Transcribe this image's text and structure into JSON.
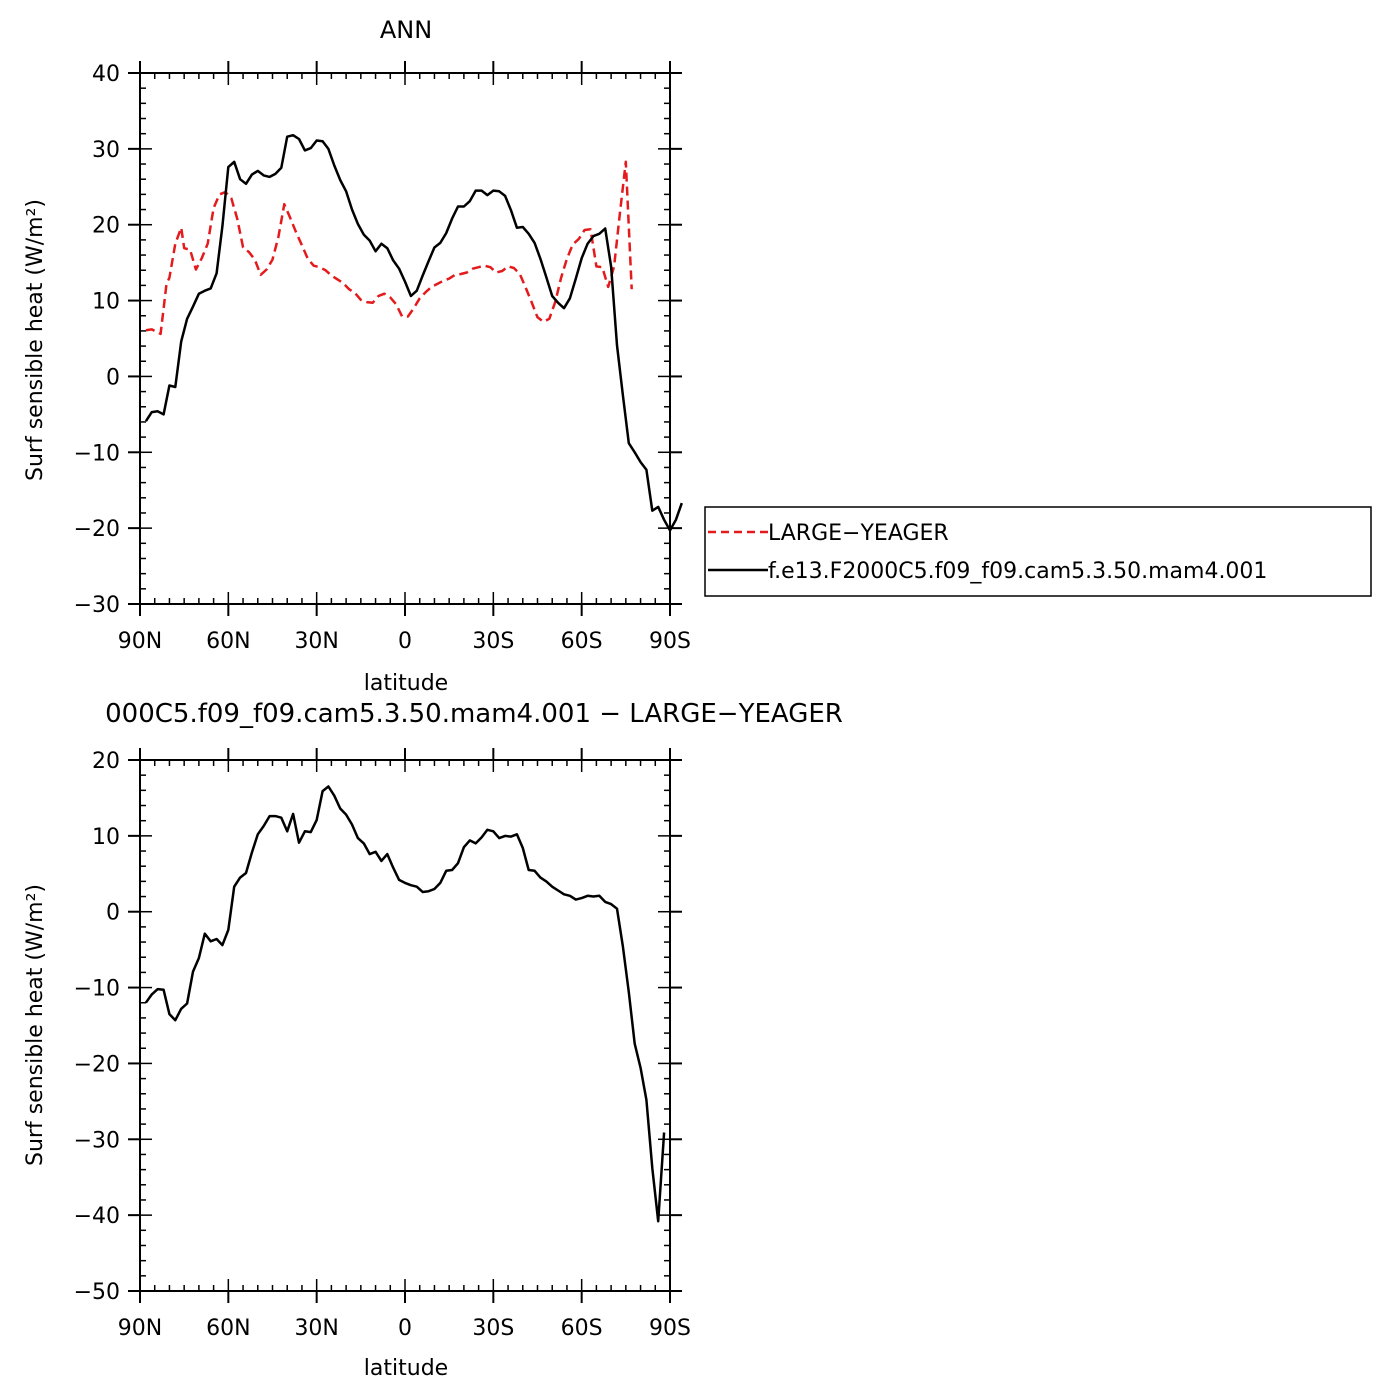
{
  "chart_data": [
    {
      "type": "line",
      "title": "ANN",
      "xlabel": "latitude",
      "ylabel": "Surf sensible heat (W/m²)",
      "xlim": [
        90,
        -90
      ],
      "ylim": [
        -30,
        40
      ],
      "x_ticks": [
        90,
        60,
        30,
        0,
        -30,
        -60,
        -90
      ],
      "x_tick_labels": [
        "90N",
        "60N",
        "30N",
        "0",
        "30S",
        "60S",
        "90S"
      ],
      "y_ticks": [
        -30,
        -20,
        -10,
        0,
        10,
        20,
        30,
        40
      ],
      "y_tick_labels": [
        "−30",
        "−20",
        "−10",
        "0",
        "10",
        "20",
        "30",
        "40"
      ],
      "legend_position": "right",
      "series": [
        {
          "name": "LARGE−YEAGER",
          "color": "#e41a1c",
          "dash": "dashed",
          "points": [
            [
              88,
              6.1
            ],
            [
              86,
              6.2
            ],
            [
              83,
              5.6
            ],
            [
              81,
              12.2
            ],
            [
              80,
              13.0
            ],
            [
              78,
              17.5
            ],
            [
              76,
              19.6
            ],
            [
              75,
              16.9
            ],
            [
              73,
              16.7
            ],
            [
              71,
              14.1
            ],
            [
              69,
              15.6
            ],
            [
              67,
              17.5
            ],
            [
              65,
              22.2
            ],
            [
              63,
              24.0
            ],
            [
              61,
              24.3
            ],
            [
              59,
              23.5
            ],
            [
              57,
              20.8
            ],
            [
              55,
              17.0
            ],
            [
              53,
              16.4
            ],
            [
              51,
              15.4
            ],
            [
              49,
              13.4
            ],
            [
              47,
              14.1
            ],
            [
              45,
              15.4
            ],
            [
              43,
              18.4
            ],
            [
              41,
              22.7
            ],
            [
              39,
              20.9
            ],
            [
              37,
              19.0
            ],
            [
              35,
              17.3
            ],
            [
              33,
              15.5
            ],
            [
              31,
              14.6
            ],
            [
              29,
              14.4
            ],
            [
              27,
              14.0
            ],
            [
              25,
              13.3
            ],
            [
              23,
              12.8
            ],
            [
              21,
              12.3
            ],
            [
              19,
              11.5
            ],
            [
              17,
              11.0
            ],
            [
              15,
              10.1
            ],
            [
              13,
              9.8
            ],
            [
              11,
              9.7
            ],
            [
              9,
              10.6
            ],
            [
              7,
              10.9
            ],
            [
              5,
              10.4
            ],
            [
              3,
              9.5
            ],
            [
              1,
              7.9
            ],
            [
              -1,
              7.9
            ],
            [
              -3,
              9.0
            ],
            [
              -5,
              10.3
            ],
            [
              -7,
              11.1
            ],
            [
              -9,
              11.8
            ],
            [
              -11,
              12.2
            ],
            [
              -13,
              12.6
            ],
            [
              -15,
              12.9
            ],
            [
              -17,
              13.4
            ],
            [
              -19,
              13.5
            ],
            [
              -21,
              13.7
            ],
            [
              -23,
              14.2
            ],
            [
              -25,
              14.4
            ],
            [
              -27,
              14.6
            ],
            [
              -29,
              14.4
            ],
            [
              -31,
              13.7
            ],
            [
              -33,
              13.9
            ],
            [
              -35,
              14.5
            ],
            [
              -37,
              14.3
            ],
            [
              -39,
              13.5
            ],
            [
              -41,
              11.7
            ],
            [
              -43,
              9.8
            ],
            [
              -45,
              7.8
            ],
            [
              -47,
              7.2
            ],
            [
              -49,
              7.6
            ],
            [
              -51,
              9.8
            ],
            [
              -53,
              13.0
            ],
            [
              -55,
              15.5
            ],
            [
              -57,
              17.4
            ],
            [
              -59,
              18.1
            ],
            [
              -61,
              19.3
            ],
            [
              -63,
              19.4
            ],
            [
              -65,
              14.5
            ],
            [
              -67,
              14.4
            ],
            [
              -69,
              11.8
            ],
            [
              -71,
              14.5
            ],
            [
              -73,
              21.5
            ],
            [
              -75,
              28.3
            ],
            [
              -77,
              11.5
            ]
          ]
        },
        {
          "name": "f.e13.F2000C5.f09_f09.cam5.3.50.mam4.001",
          "color": "#000000",
          "dash": "solid",
          "points": [
            [
              88,
              -5.9
            ],
            [
              86,
              -4.7
            ],
            [
              84,
              -4.6
            ],
            [
              82,
              -5.0
            ],
            [
              80,
              -1.2
            ],
            [
              78,
              -1.4
            ],
            [
              76,
              4.6
            ],
            [
              74,
              7.6
            ],
            [
              72,
              9.2
            ],
            [
              70,
              10.9
            ],
            [
              68,
              11.3
            ],
            [
              66,
              11.6
            ],
            [
              64,
              13.6
            ],
            [
              62,
              19.8
            ],
            [
              60,
              27.6
            ],
            [
              58,
              28.3
            ],
            [
              56,
              26.0
            ],
            [
              54,
              25.4
            ],
            [
              52,
              26.6
            ],
            [
              50,
              27.1
            ],
            [
              48,
              26.5
            ],
            [
              46,
              26.3
            ],
            [
              44,
              26.7
            ],
            [
              42,
              27.5
            ],
            [
              40,
              31.6
            ],
            [
              38,
              31.8
            ],
            [
              36,
              31.3
            ],
            [
              34,
              29.8
            ],
            [
              32,
              30.1
            ],
            [
              30,
              31.1
            ],
            [
              28,
              31.0
            ],
            [
              26,
              30.0
            ],
            [
              24,
              27.8
            ],
            [
              22,
              25.9
            ],
            [
              20,
              24.4
            ],
            [
              18,
              22.0
            ],
            [
              16,
              20.1
            ],
            [
              14,
              18.7
            ],
            [
              12,
              17.9
            ],
            [
              10,
              16.5
            ],
            [
              8,
              17.5
            ],
            [
              6,
              16.9
            ],
            [
              4,
              15.3
            ],
            [
              2,
              14.2
            ],
            [
              0,
              12.5
            ],
            [
              -2,
              10.6
            ],
            [
              -4,
              11.3
            ],
            [
              -6,
              13.3
            ],
            [
              -8,
              15.2
            ],
            [
              -10,
              17.0
            ],
            [
              -12,
              17.6
            ],
            [
              -14,
              18.9
            ],
            [
              -16,
              20.8
            ],
            [
              -18,
              22.4
            ],
            [
              -20,
              22.4
            ],
            [
              -22,
              23.1
            ],
            [
              -24,
              24.5
            ],
            [
              -26,
              24.5
            ],
            [
              -28,
              23.9
            ],
            [
              -30,
              24.5
            ],
            [
              -32,
              24.4
            ],
            [
              -34,
              23.8
            ],
            [
              -36,
              21.9
            ],
            [
              -38,
              19.6
            ],
            [
              -40,
              19.7
            ],
            [
              -42,
              18.8
            ],
            [
              -44,
              17.6
            ],
            [
              -46,
              15.5
            ],
            [
              -48,
              13.1
            ],
            [
              -50,
              10.6
            ],
            [
              -52,
              9.7
            ],
            [
              -54,
              9.0
            ],
            [
              -56,
              10.3
            ],
            [
              -58,
              12.9
            ],
            [
              -60,
              15.6
            ],
            [
              -62,
              17.5
            ],
            [
              -64,
              18.5
            ],
            [
              -66,
              18.8
            ],
            [
              -68,
              19.5
            ],
            [
              -70,
              14.5
            ],
            [
              -72,
              4.1
            ],
            [
              -74,
              -2.5
            ],
            [
              -76,
              -8.8
            ],
            [
              -78,
              -10.0
            ],
            [
              -80,
              -11.3
            ],
            [
              -82,
              -12.3
            ],
            [
              -84,
              -17.7
            ],
            [
              -86,
              -17.2
            ],
            [
              -88,
              -18.9
            ],
            [
              -90,
              -20.3
            ],
            [
              -92,
              -18.9
            ],
            [
              -94,
              -16.7
            ]
          ]
        }
      ]
    },
    {
      "type": "line",
      "title": "000C5.f09_f09.cam5.3.50.mam4.001 − LARGE−YEAGER",
      "xlabel": "latitude",
      "ylabel": "Surf sensible heat (W/m²)",
      "xlim": [
        90,
        -90
      ],
      "ylim": [
        -50,
        20
      ],
      "x_ticks": [
        90,
        60,
        30,
        0,
        -30,
        -60,
        -90
      ],
      "x_tick_labels": [
        "90N",
        "60N",
        "30N",
        "0",
        "30S",
        "60S",
        "90S"
      ],
      "y_ticks": [
        -50,
        -40,
        -30,
        -20,
        -10,
        0,
        10,
        20
      ],
      "y_tick_labels": [
        "−50",
        "−40",
        "−30",
        "−20",
        "−10",
        "0",
        "10",
        "20"
      ],
      "series": [
        {
          "color": "#000000",
          "dash": "solid",
          "points": [
            [
              88,
              -12.0
            ],
            [
              86,
              -10.9
            ],
            [
              84,
              -10.2
            ],
            [
              82,
              -10.3
            ],
            [
              80,
              -13.5
            ],
            [
              78,
              -14.3
            ],
            [
              76,
              -12.8
            ],
            [
              74,
              -12.1
            ],
            [
              72,
              -7.9
            ],
            [
              70,
              -6.1
            ],
            [
              68,
              -2.9
            ],
            [
              66,
              -3.9
            ],
            [
              64,
              -3.6
            ],
            [
              62,
              -4.4
            ],
            [
              60,
              -2.4
            ],
            [
              58,
              3.3
            ],
            [
              56,
              4.5
            ],
            [
              54,
              5.1
            ],
            [
              52,
              7.8
            ],
            [
              50,
              10.2
            ],
            [
              48,
              11.3
            ],
            [
              46,
              12.6
            ],
            [
              44,
              12.6
            ],
            [
              42,
              12.4
            ],
            [
              40,
              10.6
            ],
            [
              38,
              12.9
            ],
            [
              36,
              9.1
            ],
            [
              34,
              10.6
            ],
            [
              32,
              10.5
            ],
            [
              30,
              12.1
            ],
            [
              28,
              15.9
            ],
            [
              26,
              16.5
            ],
            [
              24,
              15.3
            ],
            [
              22,
              13.6
            ],
            [
              20,
              12.8
            ],
            [
              18,
              11.5
            ],
            [
              16,
              9.7
            ],
            [
              14,
              9.0
            ],
            [
              12,
              7.6
            ],
            [
              10,
              7.9
            ],
            [
              8,
              6.7
            ],
            [
              6,
              7.6
            ],
            [
              4,
              5.8
            ],
            [
              2,
              4.2
            ],
            [
              0,
              3.8
            ],
            [
              -2,
              3.5
            ],
            [
              -4,
              3.3
            ],
            [
              -6,
              2.6
            ],
            [
              -8,
              2.7
            ],
            [
              -10,
              3.0
            ],
            [
              -12,
              3.8
            ],
            [
              -14,
              5.4
            ],
            [
              -16,
              5.5
            ],
            [
              -18,
              6.4
            ],
            [
              -20,
              8.5
            ],
            [
              -22,
              9.4
            ],
            [
              -24,
              9.0
            ],
            [
              -26,
              9.8
            ],
            [
              -28,
              10.8
            ],
            [
              -30,
              10.6
            ],
            [
              -32,
              9.7
            ],
            [
              -34,
              10.0
            ],
            [
              -36,
              9.9
            ],
            [
              -38,
              10.2
            ],
            [
              -40,
              8.4
            ],
            [
              -42,
              5.5
            ],
            [
              -44,
              5.4
            ],
            [
              -46,
              4.5
            ],
            [
              -48,
              4.0
            ],
            [
              -50,
              3.3
            ],
            [
              -52,
              2.8
            ],
            [
              -54,
              2.3
            ],
            [
              -56,
              2.1
            ],
            [
              -58,
              1.6
            ],
            [
              -60,
              1.8
            ],
            [
              -62,
              2.1
            ],
            [
              -64,
              2.0
            ],
            [
              -66,
              2.1
            ],
            [
              -68,
              1.3
            ],
            [
              -70,
              1.0
            ],
            [
              -72,
              0.4
            ],
            [
              -74,
              -4.6
            ],
            [
              -76,
              -10.6
            ],
            [
              -78,
              -17.4
            ],
            [
              -80,
              -20.6
            ],
            [
              -82,
              -24.8
            ],
            [
              -84,
              -33.8
            ],
            [
              -86,
              -40.8
            ],
            [
              -88,
              -29.1
            ]
          ]
        }
      ]
    }
  ]
}
